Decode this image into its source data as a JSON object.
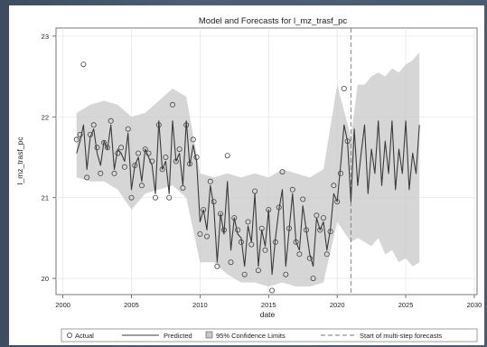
{
  "chart_data": {
    "type": "line",
    "title": "Model and Forecasts for l_mz_trasf_pc",
    "xlabel": "date",
    "ylabel": "l_mz_trasf_pc",
    "xlim": [
      1999.5,
      2030.2
    ],
    "ylim": [
      19.8,
      23.1
    ],
    "x_ticks": [
      2000,
      2005,
      2010,
      2015,
      2020,
      2025,
      2030
    ],
    "x_tick_labels": [
      "2000",
      "2005",
      "2010",
      "2015",
      "2020",
      "2025",
      "2030"
    ],
    "y_ticks": [
      20,
      21,
      22,
      23
    ],
    "y_tick_labels": [
      "20",
      "21",
      "22",
      "23"
    ],
    "forecast_start": 2021.0,
    "legend": {
      "placement": "bottom",
      "entries": [
        "Actual",
        "Predicted",
        "95% Confidence Limits",
        "Start of multi-step forecasts"
      ]
    },
    "colors": {
      "predicted": "#3b3b3b",
      "band": "#c8c8c8",
      "marker": "#444444",
      "vline": "#777777"
    },
    "series": [
      {
        "name": "Actual",
        "x": [
          2001.0,
          2001.25,
          2001.5,
          2001.75,
          2002.0,
          2002.25,
          2002.5,
          2002.75,
          2003.0,
          2003.25,
          2003.5,
          2003.75,
          2004.0,
          2004.25,
          2004.5,
          2004.75,
          2005.0,
          2005.25,
          2005.5,
          2005.75,
          2006.0,
          2006.25,
          2006.5,
          2006.75,
          2007.0,
          2007.25,
          2007.5,
          2007.75,
          2008.0,
          2008.25,
          2008.5,
          2008.75,
          2009.0,
          2009.25,
          2009.5,
          2009.75,
          2010.0,
          2010.25,
          2010.5,
          2010.75,
          2011.0,
          2011.25,
          2011.5,
          2011.75,
          2012.0,
          2012.25,
          2012.5,
          2012.75,
          2013.0,
          2013.25,
          2013.5,
          2013.75,
          2014.0,
          2014.25,
          2014.5,
          2014.75,
          2015.0,
          2015.25,
          2015.5,
          2015.75,
          2016.0,
          2016.25,
          2016.5,
          2016.75,
          2017.0,
          2017.25,
          2017.5,
          2017.75,
          2018.0,
          2018.25,
          2018.5,
          2018.75,
          2019.0,
          2019.25,
          2019.5,
          2019.75,
          2020.0,
          2020.25,
          2020.5,
          2020.75
        ],
        "values": [
          21.72,
          21.78,
          22.65,
          21.25,
          21.78,
          21.9,
          21.62,
          21.3,
          21.68,
          21.62,
          21.95,
          21.3,
          21.55,
          21.62,
          21.38,
          21.85,
          21.0,
          21.4,
          21.55,
          21.15,
          21.6,
          21.55,
          21.45,
          21.0,
          21.9,
          21.35,
          21.5,
          21.0,
          22.15,
          21.45,
          21.6,
          21.12,
          21.9,
          21.42,
          21.72,
          21.5,
          20.55,
          20.85,
          20.52,
          21.2,
          20.95,
          20.15,
          20.8,
          20.6,
          21.52,
          20.2,
          20.75,
          20.6,
          20.45,
          20.05,
          20.7,
          20.42,
          21.08,
          20.1,
          20.62,
          20.35,
          20.85,
          19.85,
          20.45,
          20.88,
          21.32,
          20.05,
          20.62,
          21.1,
          20.45,
          20.3,
          20.98,
          20.6,
          20.25,
          20.0,
          20.78,
          20.6,
          20.75,
          20.3,
          20.58,
          21.15,
          20.95,
          21.3,
          22.35,
          21.7
        ]
      },
      {
        "name": "Predicted",
        "x": [
          2001.0,
          2001.25,
          2001.5,
          2001.75,
          2002.0,
          2002.25,
          2002.5,
          2002.75,
          2003.0,
          2003.25,
          2003.5,
          2003.75,
          2004.0,
          2004.25,
          2004.5,
          2004.75,
          2005.0,
          2005.25,
          2005.5,
          2005.75,
          2006.0,
          2006.25,
          2006.5,
          2006.75,
          2007.0,
          2007.25,
          2007.5,
          2007.75,
          2008.0,
          2008.25,
          2008.5,
          2008.75,
          2009.0,
          2009.25,
          2009.5,
          2009.75,
          2010.0,
          2010.25,
          2010.5,
          2010.75,
          2011.0,
          2011.25,
          2011.5,
          2011.75,
          2012.0,
          2012.25,
          2012.5,
          2012.75,
          2013.0,
          2013.25,
          2013.5,
          2013.75,
          2014.0,
          2014.25,
          2014.5,
          2014.75,
          2015.0,
          2015.25,
          2015.5,
          2015.75,
          2016.0,
          2016.25,
          2016.5,
          2016.75,
          2017.0,
          2017.25,
          2017.5,
          2017.75,
          2018.0,
          2018.25,
          2018.5,
          2018.75,
          2019.0,
          2019.25,
          2019.5,
          2019.75,
          2020.0,
          2020.25,
          2020.5,
          2020.75,
          2021.0,
          2021.25,
          2021.5,
          2021.75,
          2022.0,
          2022.25,
          2022.5,
          2022.75,
          2023.0,
          2023.25,
          2023.5,
          2023.75,
          2024.0,
          2024.25,
          2024.5,
          2024.75,
          2025.0,
          2025.25,
          2025.5,
          2025.75,
          2026.0
        ],
        "values": [
          21.55,
          21.7,
          21.9,
          21.35,
          21.75,
          21.85,
          21.55,
          21.4,
          21.7,
          21.6,
          21.9,
          21.35,
          21.6,
          21.55,
          21.45,
          21.8,
          21.1,
          21.4,
          21.5,
          21.2,
          21.6,
          21.5,
          21.4,
          21.05,
          21.95,
          21.35,
          21.45,
          21.05,
          21.95,
          21.45,
          21.55,
          21.15,
          21.95,
          21.4,
          21.65,
          21.45,
          20.7,
          20.85,
          20.6,
          21.15,
          20.9,
          20.2,
          20.8,
          20.55,
          21.2,
          20.35,
          20.75,
          20.55,
          20.5,
          20.15,
          20.65,
          20.45,
          21.05,
          20.15,
          20.6,
          20.4,
          20.85,
          20.05,
          20.5,
          20.85,
          21.1,
          20.15,
          20.6,
          21.05,
          20.45,
          20.35,
          20.9,
          20.6,
          20.3,
          20.15,
          20.75,
          20.6,
          20.7,
          20.35,
          20.6,
          21.05,
          20.95,
          21.4,
          21.9,
          21.7,
          20.95,
          21.85,
          21.15,
          21.55,
          21.9,
          21.05,
          21.6,
          21.3,
          21.95,
          21.15,
          21.7,
          21.3,
          21.95,
          21.1,
          21.6,
          21.3,
          21.95,
          21.1,
          21.55,
          21.3,
          21.9
        ]
      },
      {
        "name": "95% Confidence Limits",
        "x": [
          2001.0,
          2002.0,
          2003.0,
          2004.0,
          2005.0,
          2006.0,
          2007.0,
          2008.0,
          2009.0,
          2010.0,
          2011.0,
          2012.0,
          2013.0,
          2014.0,
          2015.0,
          2016.0,
          2017.0,
          2018.0,
          2019.0,
          2020.0,
          2021.0,
          2021.5,
          2022.0,
          2022.5,
          2023.0,
          2023.5,
          2024.0,
          2024.5,
          2025.0,
          2025.5,
          2026.0
        ],
        "lower": [
          21.25,
          21.2,
          21.2,
          21.1,
          20.85,
          21.05,
          21.1,
          21.15,
          21.0,
          20.2,
          20.2,
          20.05,
          19.95,
          19.95,
          19.9,
          19.95,
          19.9,
          19.9,
          19.95,
          20.7,
          20.45,
          20.5,
          20.45,
          20.4,
          20.5,
          20.3,
          20.35,
          20.2,
          20.25,
          20.15,
          20.2
        ],
        "upper": [
          22.05,
          22.15,
          22.2,
          22.15,
          22.0,
          22.05,
          22.2,
          22.35,
          22.25,
          21.3,
          21.25,
          21.3,
          21.25,
          21.3,
          21.25,
          21.35,
          21.3,
          21.25,
          21.35,
          22.4,
          21.75,
          22.4,
          22.4,
          22.5,
          22.55,
          22.5,
          22.6,
          22.55,
          22.65,
          22.7,
          22.8
        ]
      }
    ]
  }
}
